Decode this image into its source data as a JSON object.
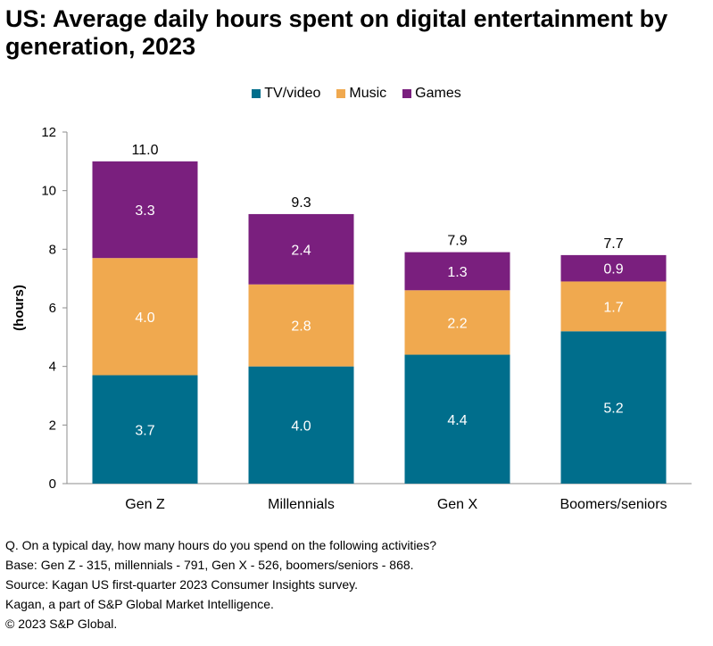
{
  "title": "US: Average daily hours spent on digital entertainment by generation, 2023",
  "chart_data": {
    "type": "bar",
    "stacked": true,
    "categories": [
      "Gen Z",
      "Millennials",
      "Gen X",
      "Boomers/seniors"
    ],
    "series": [
      {
        "name": "TV/video",
        "color": "#006e8c",
        "values": [
          3.7,
          4.0,
          4.4,
          5.2
        ]
      },
      {
        "name": "Music",
        "color": "#f0a94f",
        "values": [
          4.0,
          2.8,
          2.2,
          1.7
        ]
      },
      {
        "name": "Games",
        "color": "#7a1f7e",
        "values": [
          3.3,
          2.4,
          1.3,
          0.9
        ]
      }
    ],
    "totals": [
      "11.0",
      "9.3",
      "7.9",
      "7.7"
    ],
    "ylabel": "(hours)",
    "ylim": [
      0,
      12
    ],
    "yticks": [
      0,
      2,
      4,
      6,
      8,
      10,
      12
    ],
    "legend_position": "top",
    "grid": false
  },
  "notes": [
    "Q. On a typical day, how many hours do you spend on the following activities?",
    "Base: Gen Z - 315, millennials - 791, Gen X - 526, boomers/seniors - 868.",
    "Source: Kagan US first-quarter 2023 Consumer Insights survey.",
    "Kagan, a part of S&P Global Market Intelligence.",
    "© 2023 S&P Global."
  ]
}
